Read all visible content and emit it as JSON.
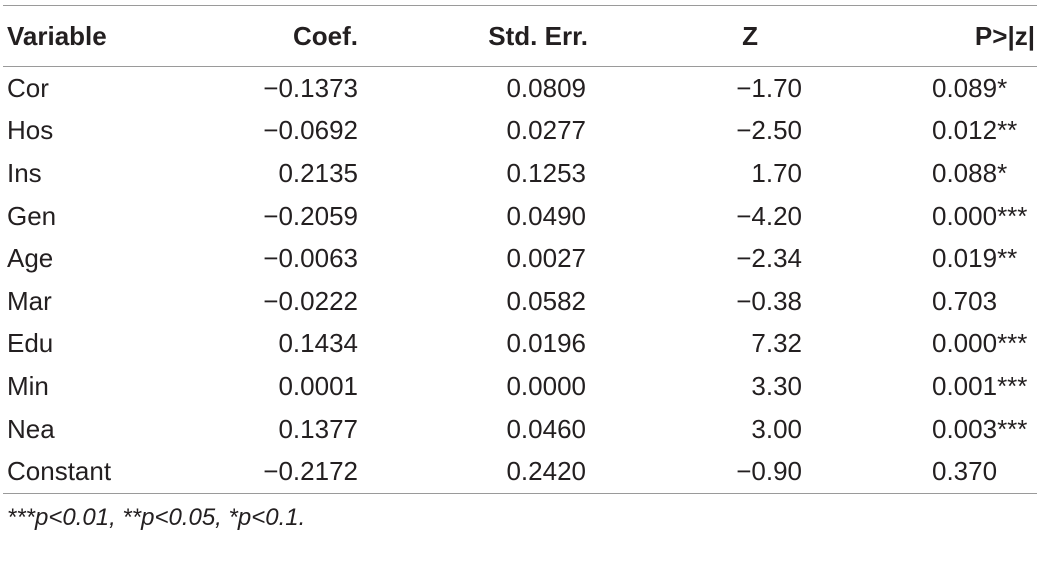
{
  "table": {
    "headers": [
      "Variable",
      "Coef.",
      "Std. Err.",
      "Z",
      "P>|z|"
    ],
    "rows": [
      {
        "variable": "Cor",
        "coef": "−0.1373",
        "se": "0.0809",
        "z": "−1.70",
        "p": "0.089*"
      },
      {
        "variable": "Hos",
        "coef": "−0.0692",
        "se": "0.0277",
        "z": "−2.50",
        "p": "0.012**"
      },
      {
        "variable": "Ins",
        "coef": "0.2135",
        "se": "0.1253",
        "z": "1.70",
        "p": "0.088*"
      },
      {
        "variable": "Gen",
        "coef": "−0.2059",
        "se": "0.0490",
        "z": "−4.20",
        "p": "0.000***"
      },
      {
        "variable": "Age",
        "coef": "−0.0063",
        "se": "0.0027",
        "z": "−2.34",
        "p": "0.019**"
      },
      {
        "variable": "Mar",
        "coef": "−0.0222",
        "se": "0.0582",
        "z": "−0.38",
        "p": "0.703"
      },
      {
        "variable": "Edu",
        "coef": "0.1434",
        "se": "0.0196",
        "z": "7.32",
        "p": "0.000***"
      },
      {
        "variable": "Min",
        "coef": "0.0001",
        "se": "0.0000",
        "z": "3.30",
        "p": "0.001***"
      },
      {
        "variable": "Nea",
        "coef": "0.1377",
        "se": "0.0460",
        "z": "3.00",
        "p": "0.003***"
      },
      {
        "variable": "Constant",
        "coef": "−0.2172",
        "se": "0.2420",
        "z": "−0.90",
        "p": "0.370"
      }
    ],
    "footnote": "***p<0.01, **p<0.05, *p<0.1."
  },
  "colors": {
    "text": "#231f20",
    "rule": "#9a9a9a"
  }
}
